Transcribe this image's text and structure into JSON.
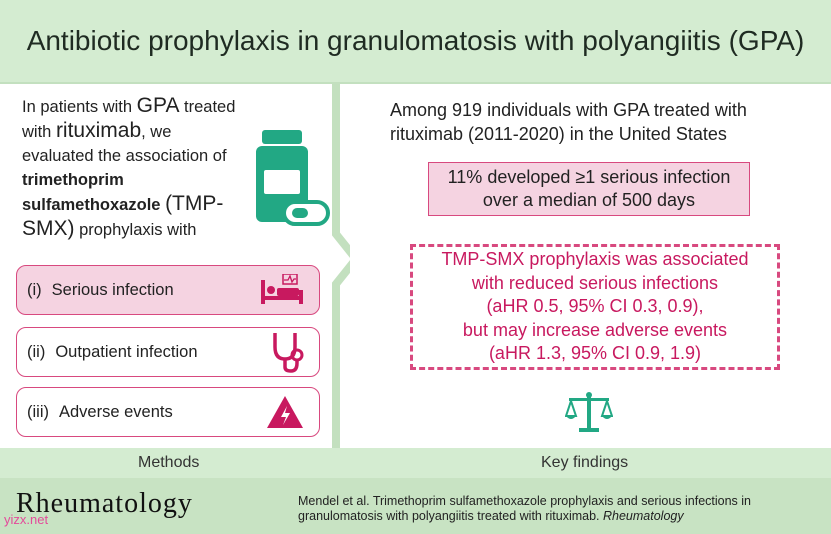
{
  "header": {
    "title": "Antibiotic prophylaxis in granulomatosis with polyangiitis (GPA)"
  },
  "intro": {
    "p1": "In patients with ",
    "gpa": "GPA",
    "p2": " treated with ",
    "rituximab": "rituximab",
    "p3": ", we evaluated the association of ",
    "drug": "trimethoprim sulfamethoxazole",
    "abbr": "(TMP-SMX)",
    "p4": " prophylaxis with"
  },
  "outcomes": [
    {
      "num": "(i)",
      "label": "Serious infection",
      "icon": "hospital-bed-icon"
    },
    {
      "num": "(ii)",
      "label": "Outpatient infection",
      "icon": "stethoscope-icon"
    },
    {
      "num": "(iii)",
      "label": "Adverse events",
      "icon": "warning-icon"
    }
  ],
  "findings": {
    "intro": "Among 919 individuals with GPA treated with rituximab (2011-2020) in the United States",
    "box1": [
      "11% developed ≥1 serious infection",
      "over a median of 500 days"
    ],
    "box2": [
      "TMP-SMX prophylaxis was associated",
      "with reduced serious infections",
      "(aHR 0.5, 95% CI 0.3, 0.9),",
      "but may increase adverse events",
      "(aHR 1.3, 95% CI 0.9, 1.9)"
    ]
  },
  "section_labels": {
    "methods": "Methods",
    "key_findings": "Key findings"
  },
  "footer": {
    "brand": "Rheumatology",
    "citation_main": "Mendel et al. Trimethoprim sulfamethoxazole prophylaxis and serious infections in granulomatosis with polyangiitis treated with rituximab. ",
    "citation_journal": "Rheumatology",
    "watermark": "yizx.net"
  },
  "colors": {
    "green": "#d4ecd1",
    "pink": "#f5d3e1",
    "magenta": "#d8497f",
    "teal": "#22a884"
  }
}
